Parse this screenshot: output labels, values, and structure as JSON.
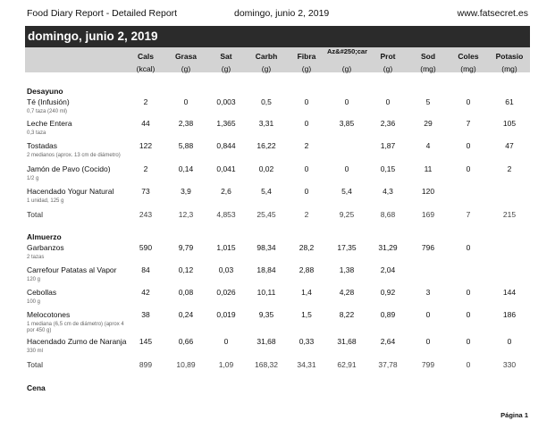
{
  "header": {
    "title": "Food Diary Report - Detailed Report",
    "date": "domingo, junio 2, 2019",
    "site": "www.fatsecret.es"
  },
  "banner": {
    "date": "domingo, junio 2, 2019"
  },
  "columns": [
    {
      "name": "Cals",
      "unit": "(kcal)"
    },
    {
      "name": "Grasa",
      "unit": "(g)"
    },
    {
      "name": "Sat",
      "unit": "(g)"
    },
    {
      "name": "Carbh",
      "unit": "(g)"
    },
    {
      "name": "Fibra",
      "unit": "(g)"
    },
    {
      "name": "Az&#250;car",
      "unit": "(g)"
    },
    {
      "name": "Prot",
      "unit": "(g)"
    },
    {
      "name": "Sod",
      "unit": "(mg)"
    },
    {
      "name": "Coles",
      "unit": "(mg)"
    },
    {
      "name": "Potasio",
      "unit": "(mg)"
    }
  ],
  "sections": [
    {
      "name": "Desayuno",
      "rows": [
        {
          "name": "Té (Infusión)",
          "sub": "0,7 taza (240 ml)",
          "values": [
            "2",
            "0",
            "0,003",
            "0,5",
            "0",
            "0",
            "0",
            "5",
            "0",
            "61"
          ]
        },
        {
          "name": "Leche Entera",
          "sub": "0,3 taza",
          "values": [
            "44",
            "2,38",
            "1,365",
            "3,31",
            "0",
            "3,85",
            "2,36",
            "29",
            "7",
            "105"
          ]
        },
        {
          "name": "Tostadas",
          "sub": "2 medianos (aprox. 13 cm de diámetro)",
          "values": [
            "122",
            "5,88",
            "0,844",
            "16,22",
            "2",
            "",
            "1,87",
            "4",
            "0",
            "47"
          ]
        },
        {
          "name": "Jamón de Pavo (Cocido)",
          "sub": "1/2 g",
          "values": [
            "2",
            "0,14",
            "0,041",
            "0,02",
            "0",
            "0",
            "0,15",
            "11",
            "0",
            "2"
          ]
        },
        {
          "name": "Hacendado Yogur Natural",
          "sub": "1 unidad, 125 g",
          "values": [
            "73",
            "3,9",
            "2,6",
            "5,4",
            "0",
            "5,4",
            "4,3",
            "120",
            "",
            ""
          ]
        }
      ],
      "total": {
        "label": "Total",
        "values": [
          "243",
          "12,3",
          "4,853",
          "25,45",
          "2",
          "9,25",
          "8,68",
          "169",
          "7",
          "215"
        ]
      }
    },
    {
      "name": "Almuerzo",
      "rows": [
        {
          "name": "Garbanzos",
          "sub": "2 tazas",
          "values": [
            "590",
            "9,79",
            "1,015",
            "98,34",
            "28,2",
            "17,35",
            "31,29",
            "796",
            "0",
            ""
          ]
        },
        {
          "name": "Carrefour Patatas al Vapor",
          "sub": "120 g",
          "values": [
            "84",
            "0,12",
            "0,03",
            "18,84",
            "2,88",
            "1,38",
            "2,04",
            "",
            "",
            ""
          ]
        },
        {
          "name": "Cebollas",
          "sub": "100 g",
          "values": [
            "42",
            "0,08",
            "0,026",
            "10,11",
            "1,4",
            "4,28",
            "0,92",
            "3",
            "0",
            "144"
          ]
        },
        {
          "name": "Melocotones",
          "sub": "1 mediana (6,5 cm de diámetro) (aprox 4 por 450 g)",
          "values": [
            "38",
            "0,24",
            "0,019",
            "9,35",
            "1,5",
            "8,22",
            "0,89",
            "0",
            "0",
            "186"
          ]
        },
        {
          "name": "Hacendado Zumo de Naranja",
          "sub": "330 ml",
          "values": [
            "145",
            "0,66",
            "0",
            "31,68",
            "0,33",
            "31,68",
            "2,64",
            "0",
            "0",
            "0"
          ]
        }
      ],
      "total": {
        "label": "Total",
        "values": [
          "899",
          "10,89",
          "1,09",
          "168,32",
          "34,31",
          "62,91",
          "37,78",
          "799",
          "0",
          "330"
        ]
      }
    },
    {
      "name": "Cena",
      "rows": [],
      "total": null
    }
  ],
  "footer": {
    "page": "Página 1"
  }
}
